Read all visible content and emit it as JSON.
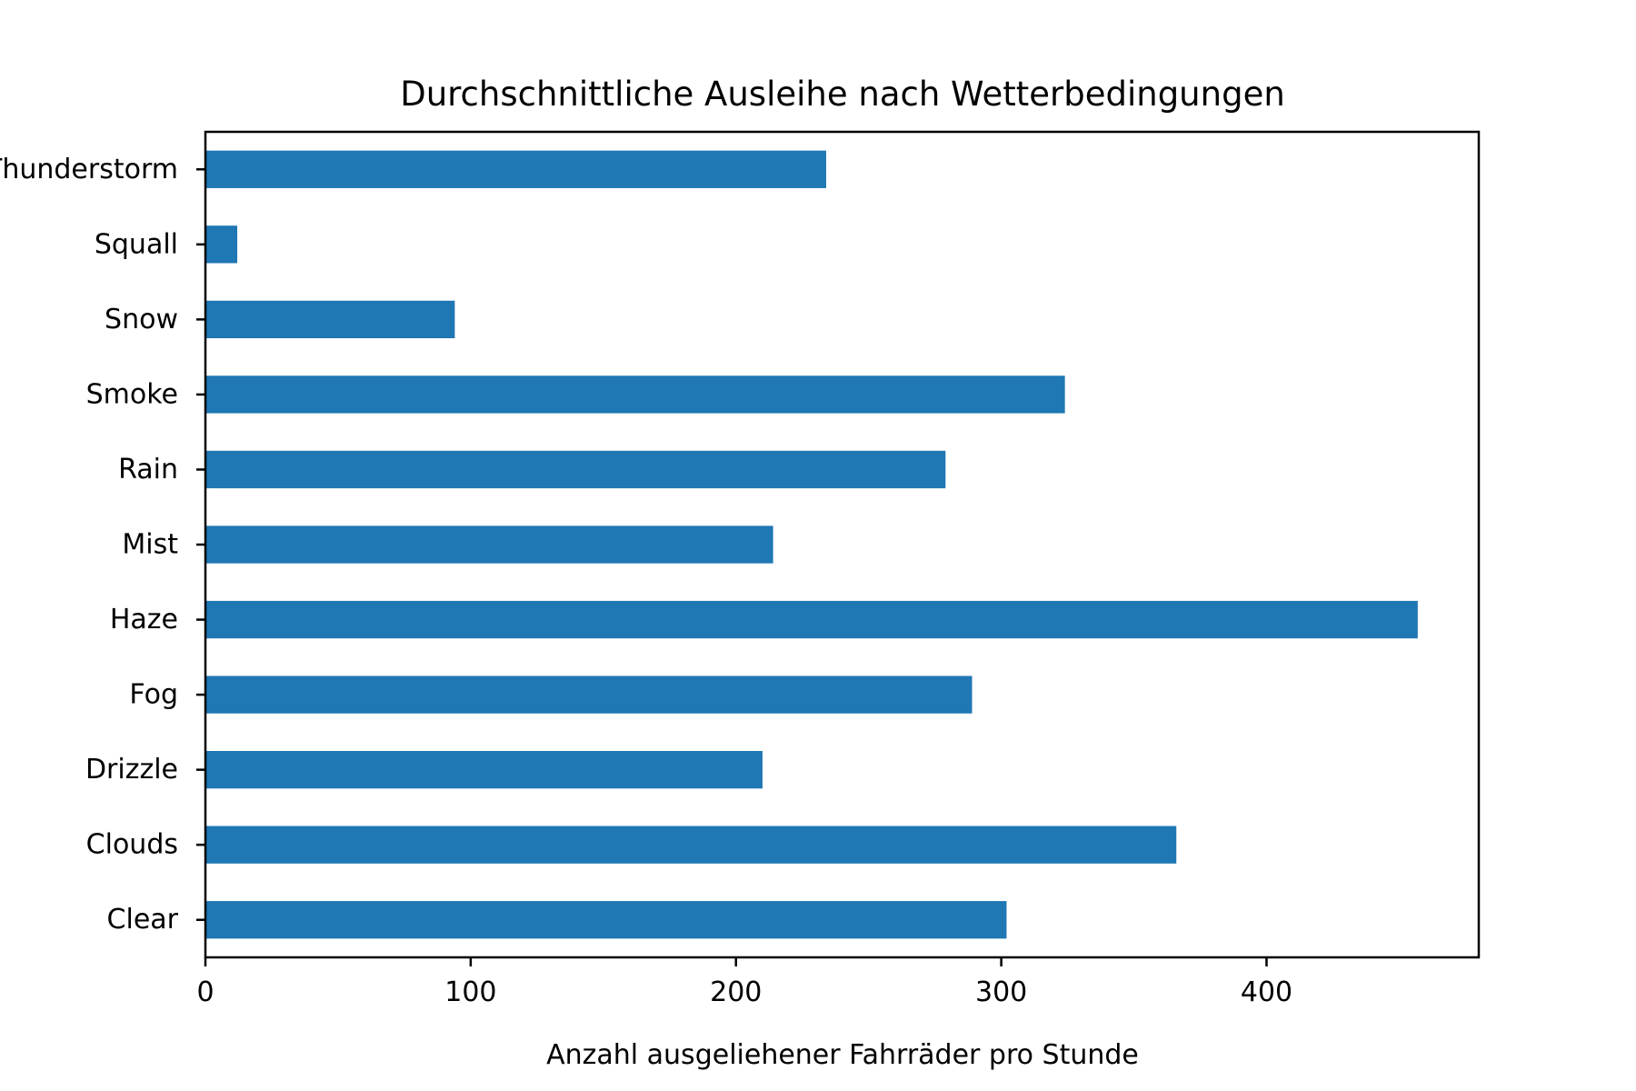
{
  "chart_data": {
    "type": "bar",
    "orientation": "horizontal",
    "title": "Durchschnittliche Ausleihe nach Wetterbedingungen",
    "xlabel": "Anzahl ausgeliehener Fahrräder pro Stunde",
    "ylabel": "",
    "categories": [
      "Clear",
      "Clouds",
      "Drizzle",
      "Fog",
      "Haze",
      "Mist",
      "Rain",
      "Smoke",
      "Snow",
      "Squall",
      "Thunderstorm"
    ],
    "values": [
      302,
      366,
      210,
      289,
      457,
      214,
      279,
      324,
      94,
      12,
      234
    ],
    "xlim": [
      0,
      480
    ],
    "xticks": [
      0,
      100,
      200,
      300,
      400
    ],
    "grid": false,
    "bar_color": "#1f77b4"
  }
}
